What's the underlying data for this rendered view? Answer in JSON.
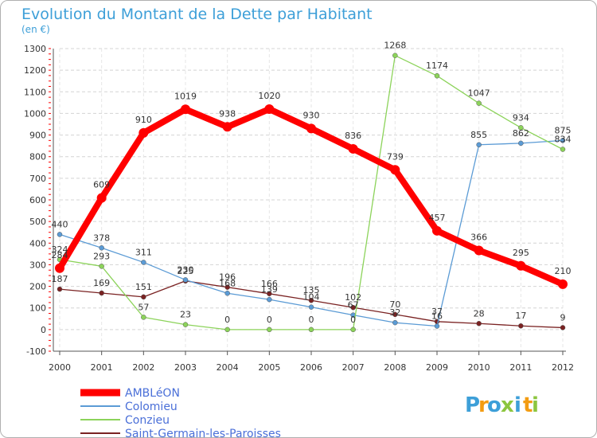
{
  "chart_data": {
    "type": "line",
    "title": "Evolution du Montant de la Dette par Habitant",
    "subtitle": "(en €)",
    "x": [
      2000,
      2001,
      2002,
      2003,
      2004,
      2005,
      2006,
      2007,
      2008,
      2009,
      2010,
      2011,
      2012
    ],
    "ylim": [
      -100,
      1300
    ],
    "yticks": [
      -100,
      0,
      100,
      200,
      300,
      400,
      500,
      600,
      700,
      800,
      900,
      1000,
      1100,
      1200,
      1300
    ],
    "grid": "dashed-horizontal",
    "legend_position": "bottom-left",
    "series": [
      {
        "name": "AMBLéON",
        "color": "#ff0000",
        "values": [
          284,
          609,
          910,
          1019,
          938,
          1020,
          930,
          836,
          739,
          457,
          366,
          295,
          210
        ]
      },
      {
        "name": "Colomieu",
        "color": "#5b9bd5",
        "values": [
          440,
          378,
          311,
          230,
          168,
          139,
          104,
          67,
          32,
          16,
          855,
          862,
          875
        ]
      },
      {
        "name": "Conzieu",
        "color": "#8cd35a",
        "values": [
          324,
          293,
          57,
          23,
          0,
          0,
          0,
          0,
          1268,
          1174,
          1047,
          934,
          834
        ]
      },
      {
        "name": "Saint-Germain-les-Paroisses",
        "color": "#7a2222",
        "values": [
          187,
          169,
          151,
          225,
          196,
          166,
          135,
          102,
          70,
          37,
          28,
          17,
          9
        ]
      }
    ]
  },
  "brand": {
    "letters": [
      "P",
      "r",
      "o",
      "x",
      "i",
      "t",
      "i"
    ],
    "colors": [
      "#3d9fd8",
      "#f39c12",
      "#3d9fd8",
      "#8cc63f",
      "#3d9fd8",
      "#f39c12",
      "#8cc63f"
    ]
  }
}
